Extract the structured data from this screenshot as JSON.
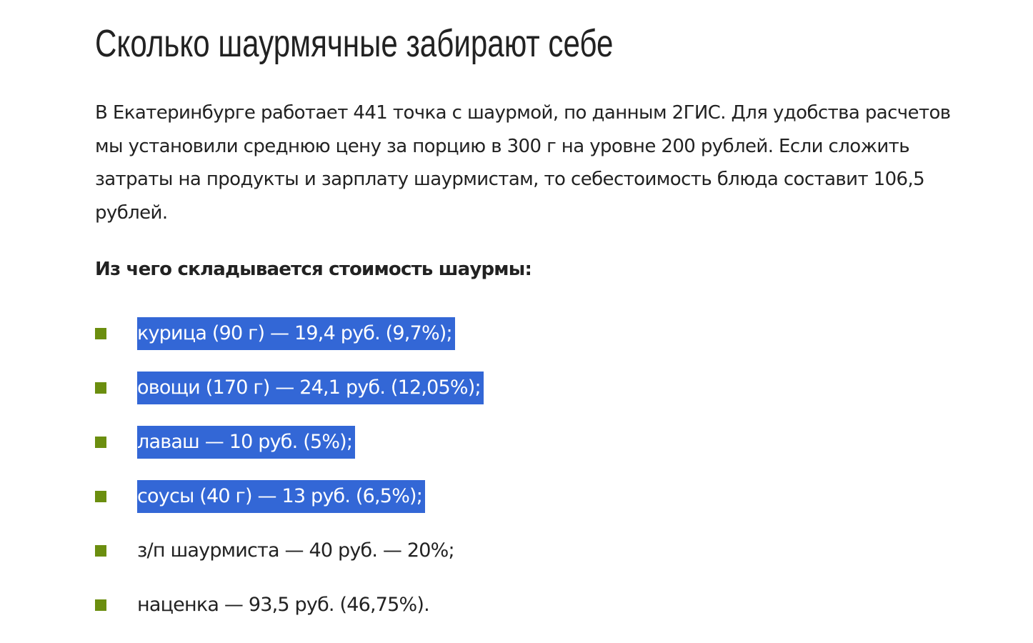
{
  "article": {
    "title": "Сколько шаурмячные забирают себе",
    "paragraph": "В Екатеринбурге работает 441 точка с шаурмой, по данным 2ГИС. Для удобства расчетов мы установили среднюю цену за порцию в 300 г на уровне 200 рублей. Если сложить затраты на продукты и зарплату шаурмистам, то себестоимость блюда составит 106,5 рублей.",
    "subheading": "Из чего складывается стоимость шаурмы:",
    "items": [
      {
        "text": "курица (90 г) — 19,4 руб. (9,7%);",
        "selected": true
      },
      {
        "text": "овощи (170 г) — 24,1 руб. (12,05%);",
        "selected": true
      },
      {
        "text": "лаваш — 10 руб. (5%);",
        "selected": true
      },
      {
        "text": "соусы (40 г) — 13 руб. (6,5%);",
        "selected": true
      },
      {
        "text": "з/п шаурмиста — 40 руб. — 20%;",
        "selected": false
      },
      {
        "text": "наценка — 93,5 руб. (46,75%).",
        "selected": false
      }
    ]
  },
  "colors": {
    "bullet": "#6b8e0f",
    "selection": "#3367d6",
    "text": "#222222"
  }
}
